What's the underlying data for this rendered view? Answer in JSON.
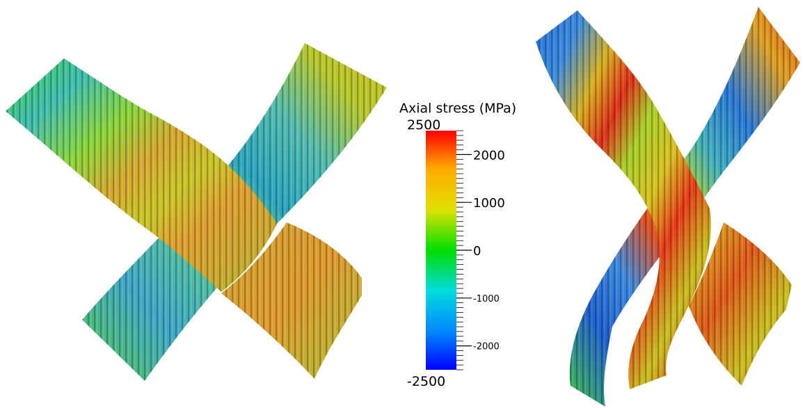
{
  "colorbar": {
    "title": "Axial stress (MPa)",
    "max_label": "2500",
    "min_label": "-2500",
    "range": [
      -2500,
      2500
    ],
    "ticks": [
      {
        "value": 2000,
        "label": "2000",
        "size": "major"
      },
      {
        "value": 1000,
        "label": "1000",
        "size": "major"
      },
      {
        "value": 0,
        "label": "0",
        "size": "major"
      },
      {
        "value": -1000,
        "label": "-1000",
        "size": "minor"
      },
      {
        "value": -2000,
        "label": "-2000",
        "size": "minor"
      }
    ],
    "minor_tick_step": 100,
    "colors": {
      "max": "#ff0000",
      "high": "#ffaa00",
      "mid_high": "#e0e000",
      "zero": "#00dd00",
      "mid_low": "#00dddd",
      "low": "#0088ff",
      "min": "#0000ff"
    }
  },
  "panels": [
    {
      "view": "left-weave-render"
    },
    {
      "view": "right-weave-render"
    }
  ]
}
